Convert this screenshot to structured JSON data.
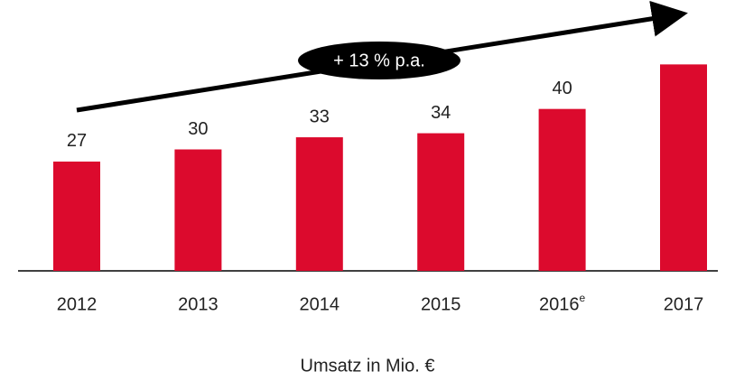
{
  "chart_data": {
    "type": "bar",
    "categories": [
      "2012",
      "2013",
      "2014",
      "2015",
      "2016",
      "2017"
    ],
    "footnote_marks": [
      {
        "category": "2016",
        "mark": "e"
      }
    ],
    "values": [
      27,
      30,
      33,
      34,
      40,
      51
    ],
    "value_labels": [
      "27",
      "30",
      "33",
      "34",
      "40",
      null
    ],
    "color": "#dc0a2d",
    "ylim": [
      0,
      60
    ],
    "xlabel": "Umsatz in Mio. €",
    "annotation": "+ 13 % p.a."
  }
}
